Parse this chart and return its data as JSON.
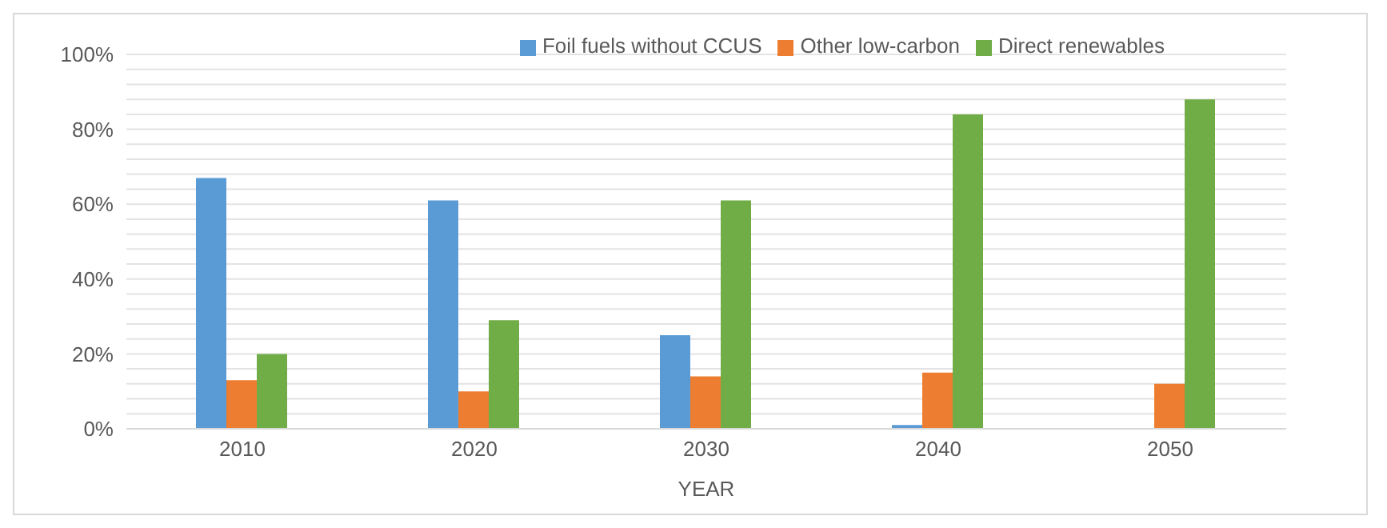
{
  "chart_data": {
    "type": "bar",
    "xlabel": "YEAR",
    "categories": [
      "2010",
      "2020",
      "2030",
      "2040",
      "2050"
    ],
    "series": [
      {
        "name": "Foil fuels without CCUS",
        "color": "#5b9bd5",
        "values": [
          67,
          61,
          25,
          1,
          0
        ]
      },
      {
        "name": "Other low-carbon",
        "color": "#ed7d31",
        "values": [
          13,
          10,
          14,
          15,
          12
        ]
      },
      {
        "name": "Direct renewables",
        "color": "#70ad47",
        "values": [
          20,
          29,
          61,
          84,
          88
        ]
      }
    ],
    "ylim": [
      0,
      100
    ],
    "yticks": [
      {
        "value": 0,
        "label": "0%"
      },
      {
        "value": 4,
        "label": null
      },
      {
        "value": 8,
        "label": null
      },
      {
        "value": 12,
        "label": null
      },
      {
        "value": 16,
        "label": null
      },
      {
        "value": 20,
        "label": "20%"
      },
      {
        "value": 24,
        "label": null
      },
      {
        "value": 28,
        "label": null
      },
      {
        "value": 32,
        "label": null
      },
      {
        "value": 36,
        "label": null
      },
      {
        "value": 40,
        "label": "40%"
      },
      {
        "value": 44,
        "label": null
      },
      {
        "value": 48,
        "label": null
      },
      {
        "value": 52,
        "label": null
      },
      {
        "value": 56,
        "label": null
      },
      {
        "value": 60,
        "label": "60%"
      },
      {
        "value": 64,
        "label": null
      },
      {
        "value": 68,
        "label": null
      },
      {
        "value": 72,
        "label": null
      },
      {
        "value": 76,
        "label": null
      },
      {
        "value": 80,
        "label": "80%"
      },
      {
        "value": 84,
        "label": null
      },
      {
        "value": 88,
        "label": null
      },
      {
        "value": 92,
        "label": null
      },
      {
        "value": 96,
        "label": null
      },
      {
        "value": 100,
        "label": "100%"
      }
    ],
    "grid": "y",
    "legend": "top"
  }
}
